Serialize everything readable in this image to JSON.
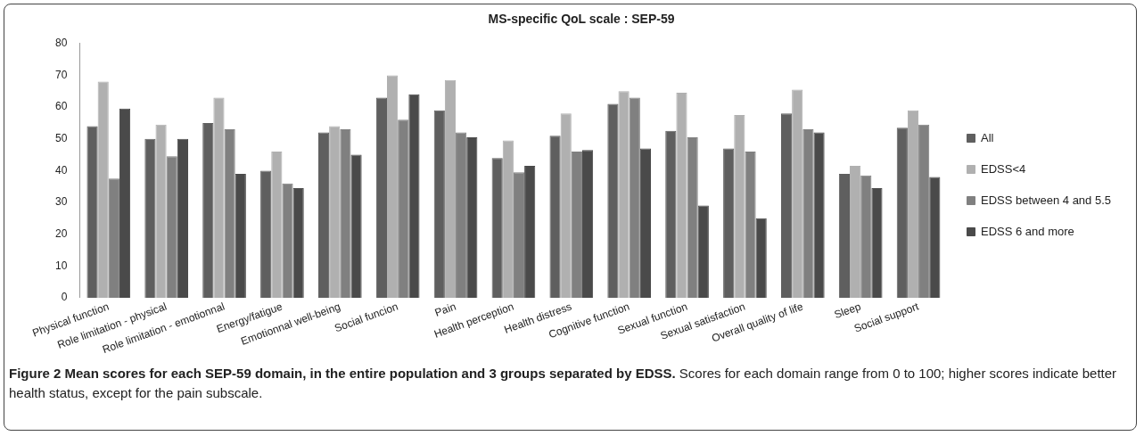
{
  "chart_data": {
    "type": "bar",
    "title": "MS-specific QoL scale : SEP-59",
    "categories": [
      "Physical function",
      "Role limitation - physical",
      "Role limitation - emotionnal",
      "Energy/fatigue",
      "Emotionnal well-being",
      "Social funcion",
      "Pain",
      "Health perception",
      "Health distress",
      "Cognitive function",
      "Sexual function",
      "Sexual satisfaction",
      "Overall quality of life",
      "Sleep",
      "Social support"
    ],
    "series": [
      {
        "name": "All",
        "color": "#5f5f5f",
        "values": [
          54,
          50,
          55,
          40,
          52,
          63,
          59,
          44,
          51,
          61,
          52.5,
          47,
          58,
          39,
          53.5
        ]
      },
      {
        "name": "EDSS<4",
        "color": "#b0b0b0",
        "values": [
          68,
          54.5,
          63,
          46,
          54,
          70,
          68.5,
          49.5,
          58,
          65,
          64.5,
          57.5,
          65.5,
          41.5,
          59
        ]
      },
      {
        "name": "EDSS between 4 and 5.5",
        "color": "#808080",
        "values": [
          37.5,
          44.5,
          53,
          36,
          53,
          56,
          52,
          39.5,
          46,
          63,
          50.5,
          46,
          53,
          38.5,
          54.5
        ]
      },
      {
        "name": "EDSS 6 and more",
        "color": "#4a4a4a",
        "values": [
          59.5,
          50,
          39,
          34.5,
          45,
          64,
          50.5,
          41.5,
          46.5,
          47,
          29,
          25,
          52,
          34.5,
          38
        ]
      }
    ],
    "ylim": [
      0,
      80
    ],
    "yticks": [
      0,
      10,
      20,
      30,
      40,
      50,
      60,
      70,
      80
    ],
    "grid": false,
    "legend": "right",
    "annotations": [
      "Figure 2 Mean scores for each SEP-59 domain, in the entire population and 3 groups separated by EDSS.",
      "Scores for each domain range from 0 to 100; higher scores indicate better health status, except for the pain subscale."
    ]
  }
}
